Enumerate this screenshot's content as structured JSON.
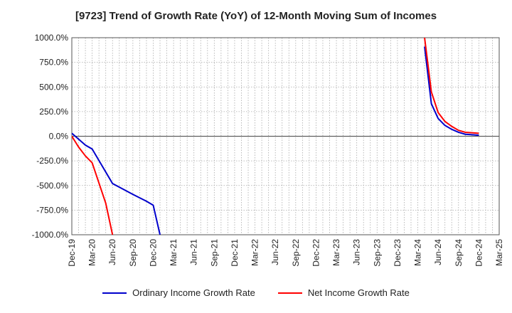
{
  "chart_data": {
    "type": "line",
    "title": "[9723]  Trend of Growth Rate (YoY) of 12-Month Moving Sum of Incomes",
    "xlabel": "",
    "ylabel": "",
    "ylim": [
      -1000,
      1000
    ],
    "yticks": [
      1000,
      750,
      500,
      250,
      0,
      -250,
      -500,
      -750,
      -1000
    ],
    "ytick_labels": [
      "1000.0%",
      "750.0%",
      "500.0%",
      "250.0%",
      "0.0%",
      "-250.0%",
      "-500.0%",
      "-750.0%",
      "-1000.0%"
    ],
    "x_labels": [
      "Dec-19",
      "Mar-20",
      "Jun-20",
      "Sep-20",
      "Dec-20",
      "Mar-21",
      "Jun-21",
      "Sep-21",
      "Dec-21",
      "Mar-22",
      "Jun-22",
      "Sep-22",
      "Dec-22",
      "Mar-23",
      "Jun-23",
      "Sep-23",
      "Dec-23",
      "Mar-24",
      "Jun-24",
      "Sep-24",
      "Dec-24",
      "Mar-25"
    ],
    "grid": true,
    "legend_position": "bottom",
    "series": [
      {
        "name": "Ordinary Income Growth Rate",
        "color": "#0000cc",
        "points": [
          [
            "Dec-19",
            30
          ],
          [
            "Jan-20",
            -30
          ],
          [
            "Feb-20",
            -90
          ],
          [
            "Mar-20",
            -130
          ],
          [
            "Jun-20",
            -480
          ],
          [
            "Sep-20",
            -590
          ],
          [
            "Nov-20",
            -660
          ],
          [
            "Dec-20",
            -700
          ],
          [
            "Jan-21",
            -1000
          ],
          null,
          [
            "Apr-24",
            910
          ],
          [
            "May-24",
            330
          ],
          [
            "Jun-24",
            180
          ],
          [
            "Jul-24",
            110
          ],
          [
            "Aug-24",
            70
          ],
          [
            "Sep-24",
            40
          ],
          [
            "Oct-24",
            20
          ],
          [
            "Nov-24",
            15
          ],
          [
            "Dec-24",
            10
          ]
        ]
      },
      {
        "name": "Net Income Growth Rate",
        "color": "#ff0000",
        "points": [
          [
            "Dec-19",
            0
          ],
          [
            "Jan-20",
            -110
          ],
          [
            "Feb-20",
            -200
          ],
          [
            "Mar-20",
            -270
          ],
          [
            "May-20",
            -680
          ],
          [
            "Jun-20",
            -1000
          ],
          null,
          [
            "Apr-24",
            1000
          ],
          [
            "May-24",
            450
          ],
          [
            "Jun-24",
            240
          ],
          [
            "Jul-24",
            150
          ],
          [
            "Aug-24",
            100
          ],
          [
            "Sep-24",
            60
          ],
          [
            "Oct-24",
            40
          ],
          [
            "Nov-24",
            35
          ],
          [
            "Dec-24",
            30
          ]
        ]
      }
    ]
  }
}
